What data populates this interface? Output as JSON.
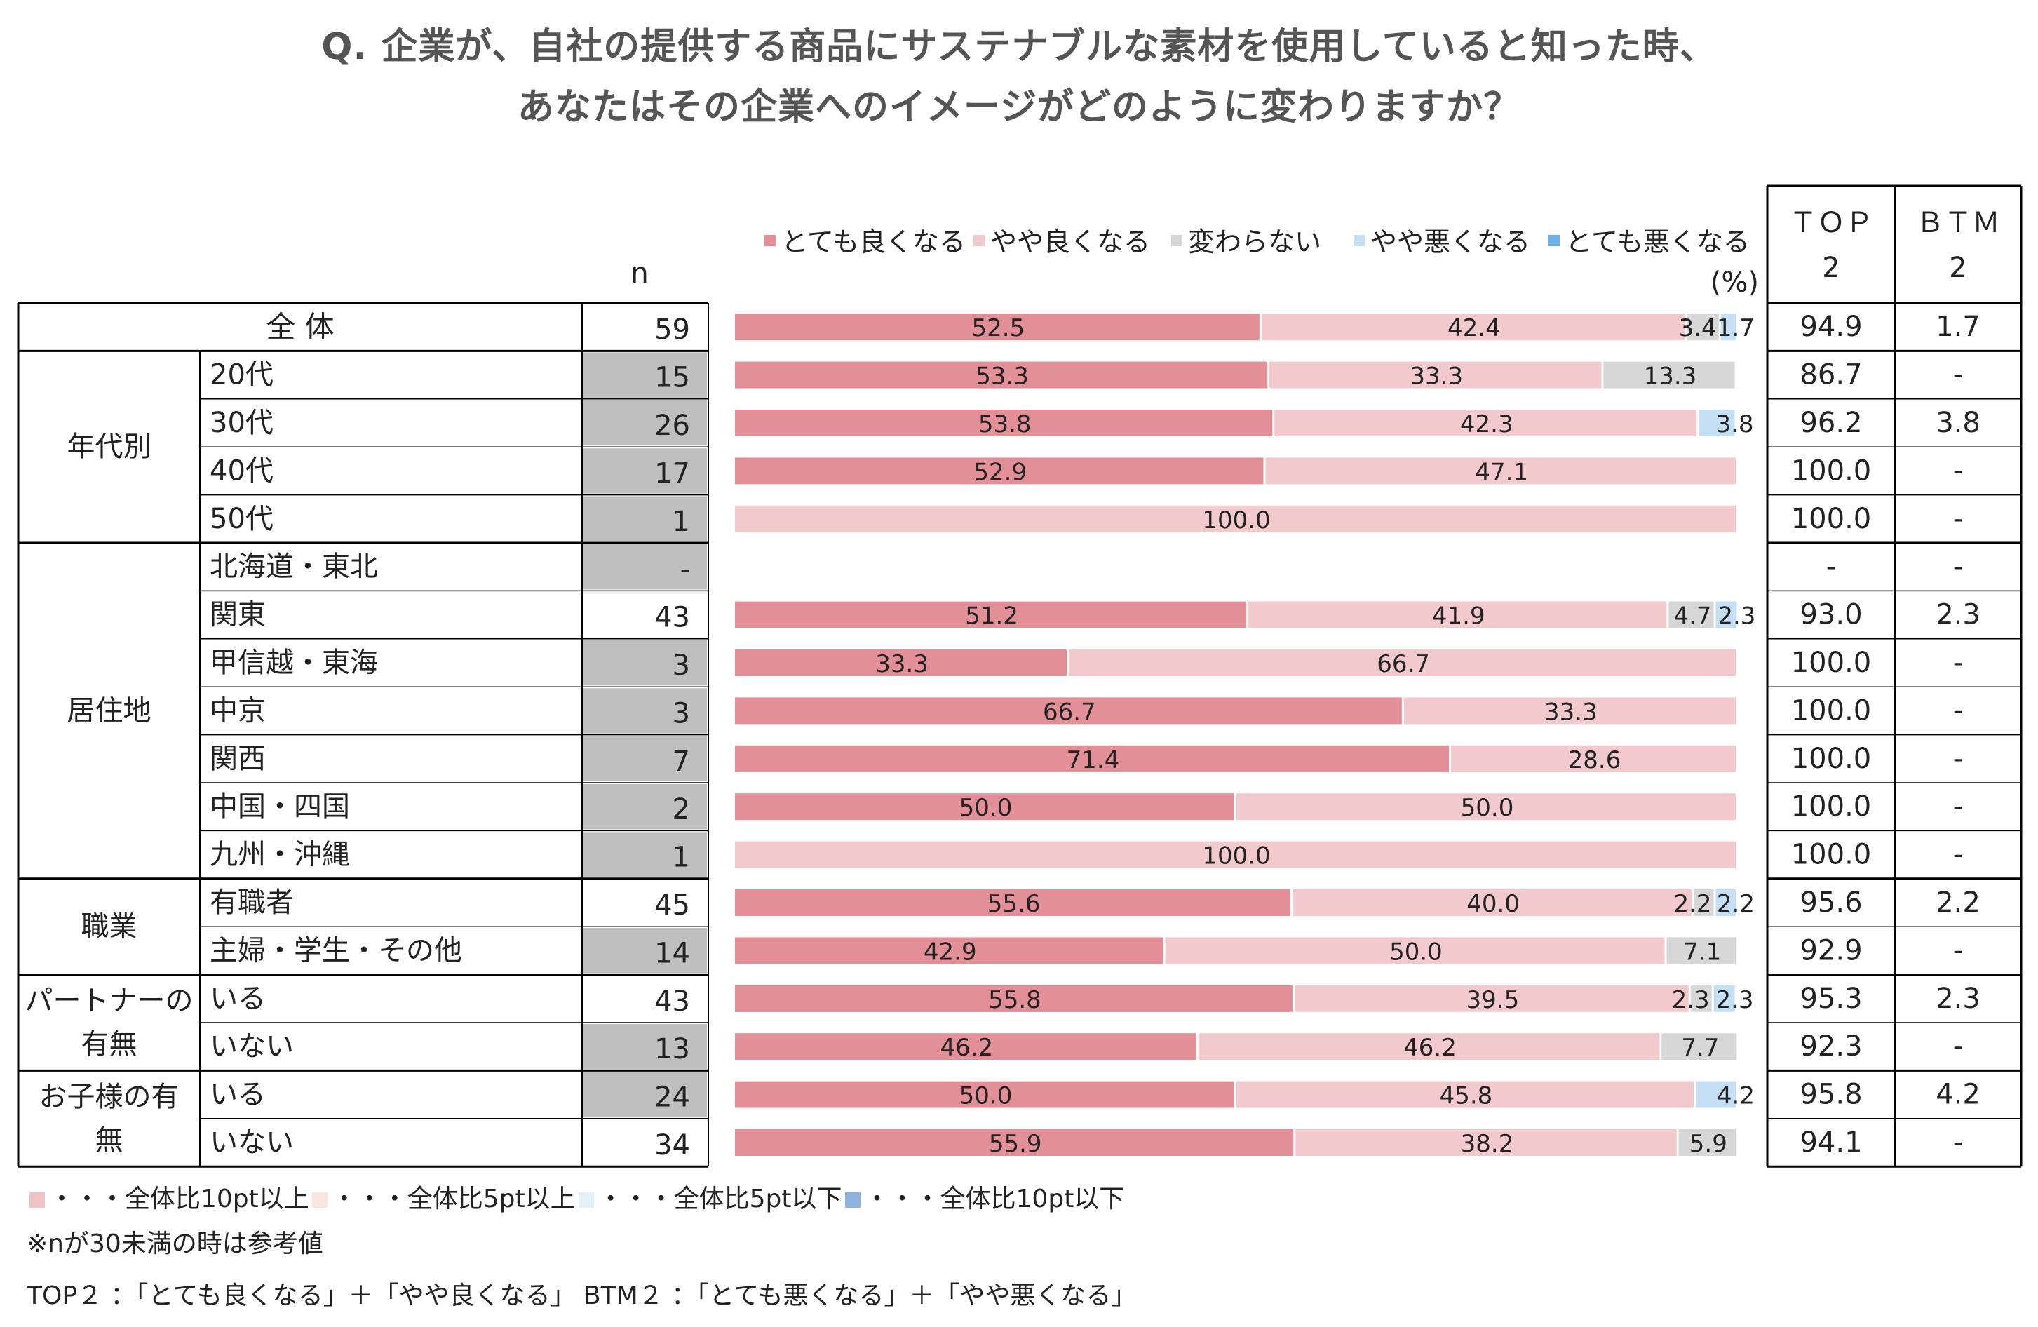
{
  "title": {
    "line1": "Q. 企業が、自社の提供する商品にサステナブルな素材を使用していると知った時、",
    "line2": "あなたはその企業へのイメージがどのように変わりますか？"
  },
  "chart_data": {
    "type": "bar",
    "stacked": true,
    "orientation": "horizontal",
    "unit_label": "(%)",
    "n_header": "n",
    "top2_header": [
      "ＴＯＰ",
      "2"
    ],
    "btm2_header": [
      "ＢＴＭ",
      "2"
    ],
    "legend": [
      {
        "label": "とても良くなる",
        "color": "#e38f98"
      },
      {
        "label": "やや良くなる",
        "color": "#f2c9cd"
      },
      {
        "label": "変わらない",
        "color": "#d7d7d7"
      },
      {
        "label": "やや悪くなる",
        "color": "#c5e0f5"
      },
      {
        "label": "とても悪くなる",
        "color": "#6fb0e8"
      }
    ],
    "groups": [
      {
        "name": [
          "全 体"
        ],
        "rows": [
          {
            "label": "",
            "n": "59",
            "shade": false,
            "values": [
              52.5,
              42.4,
              3.4,
              1.7,
              0
            ],
            "labels": [
              "52.5",
              "42.4",
              "3.4",
              "1.7",
              ""
            ],
            "top2": "94.9",
            "btm2": "1.7"
          }
        ]
      },
      {
        "name": [
          "年代別"
        ],
        "rows": [
          {
            "label": "20代",
            "n": "15",
            "shade": true,
            "values": [
              53.3,
              33.3,
              13.3,
              0,
              0
            ],
            "labels": [
              "53.3",
              "33.3",
              "13.3",
              "",
              ""
            ],
            "top2": "86.7",
            "btm2": "-"
          },
          {
            "label": "30代",
            "n": "26",
            "shade": true,
            "values": [
              53.8,
              42.3,
              0,
              3.8,
              0
            ],
            "labels": [
              "53.8",
              "42.3",
              "",
              "3.8",
              ""
            ],
            "top2": "96.2",
            "btm2": "3.8"
          },
          {
            "label": "40代",
            "n": "17",
            "shade": true,
            "values": [
              52.9,
              47.1,
              0,
              0,
              0
            ],
            "labels": [
              "52.9",
              "47.1",
              "",
              "",
              ""
            ],
            "top2": "100.0",
            "btm2": "-"
          },
          {
            "label": "50代",
            "n": "1",
            "shade": true,
            "values": [
              0,
              100,
              0,
              0,
              0
            ],
            "labels": [
              "",
              "100.0",
              "",
              "",
              ""
            ],
            "top2": "100.0",
            "btm2": "-"
          }
        ]
      },
      {
        "name": [
          "居住地"
        ],
        "rows": [
          {
            "label": "北海道・東北",
            "n": "-",
            "shade": true,
            "values": [
              0,
              0,
              0,
              0,
              0
            ],
            "labels": [
              "",
              "",
              "",
              "",
              ""
            ],
            "top2": "-",
            "btm2": "-"
          },
          {
            "label": "関東",
            "n": "43",
            "shade": false,
            "values": [
              51.2,
              41.9,
              4.7,
              2.3,
              0
            ],
            "labels": [
              "51.2",
              "41.9",
              "4.7",
              "2.3",
              ""
            ],
            "top2": "93.0",
            "btm2": "2.3"
          },
          {
            "label": "甲信越・東海",
            "n": "3",
            "shade": true,
            "values": [
              33.3,
              66.7,
              0,
              0,
              0
            ],
            "labels": [
              "33.3",
              "66.7",
              "",
              "",
              ""
            ],
            "top2": "100.0",
            "btm2": "-"
          },
          {
            "label": "中京",
            "n": "3",
            "shade": true,
            "values": [
              66.7,
              33.3,
              0,
              0,
              0
            ],
            "labels": [
              "66.7",
              "33.3",
              "",
              "",
              ""
            ],
            "top2": "100.0",
            "btm2": "-"
          },
          {
            "label": "関西",
            "n": "7",
            "shade": true,
            "values": [
              71.4,
              28.6,
              0,
              0,
              0
            ],
            "labels": [
              "71.4",
              "28.6",
              "",
              "",
              ""
            ],
            "top2": "100.0",
            "btm2": "-"
          },
          {
            "label": "中国・四国",
            "n": "2",
            "shade": true,
            "values": [
              50.0,
              50.0,
              0,
              0,
              0
            ],
            "labels": [
              "50.0",
              "50.0",
              "",
              "",
              ""
            ],
            "top2": "100.0",
            "btm2": "-"
          },
          {
            "label": "九州・沖縄",
            "n": "1",
            "shade": true,
            "values": [
              0,
              100,
              0,
              0,
              0
            ],
            "labels": [
              "",
              "100.0",
              "",
              "",
              ""
            ],
            "top2": "100.0",
            "btm2": "-"
          }
        ]
      },
      {
        "name": [
          "職業"
        ],
        "rows": [
          {
            "label": "有職者",
            "n": "45",
            "shade": false,
            "values": [
              55.6,
              40.0,
              2.2,
              2.2,
              0
            ],
            "labels": [
              "55.6",
              "40.0",
              "2.2",
              "2.2",
              ""
            ],
            "top2": "95.6",
            "btm2": "2.2"
          },
          {
            "label": "主婦・学生・その他",
            "n": "14",
            "shade": true,
            "values": [
              42.9,
              50.0,
              7.1,
              0,
              0
            ],
            "labels": [
              "42.9",
              "50.0",
              "7.1",
              "",
              ""
            ],
            "top2": "92.9",
            "btm2": "-"
          }
        ]
      },
      {
        "name": [
          "パートナーの",
          "有無"
        ],
        "rows": [
          {
            "label": "いる",
            "n": "43",
            "shade": false,
            "values": [
              55.8,
              39.5,
              2.3,
              2.3,
              0
            ],
            "labels": [
              "55.8",
              "39.5",
              "2.3",
              "2.3",
              ""
            ],
            "top2": "95.3",
            "btm2": "2.3"
          },
          {
            "label": "いない",
            "n": "13",
            "shade": true,
            "values": [
              46.2,
              46.2,
              7.7,
              0,
              0
            ],
            "labels": [
              "46.2",
              "46.2",
              "7.7",
              "",
              ""
            ],
            "top2": "92.3",
            "btm2": "-"
          }
        ]
      },
      {
        "name": [
          "お子様の有",
          "無"
        ],
        "rows": [
          {
            "label": "いる",
            "n": "24",
            "shade": true,
            "values": [
              50.0,
              45.8,
              0,
              4.2,
              0
            ],
            "labels": [
              "50.0",
              "45.8",
              "",
              "4.2",
              ""
            ],
            "top2": "95.8",
            "btm2": "4.2"
          },
          {
            "label": "いない",
            "n": "34",
            "shade": false,
            "values": [
              55.9,
              38.2,
              5.9,
              0,
              0
            ],
            "labels": [
              "55.9",
              "38.2",
              "5.9",
              "",
              ""
            ],
            "top2": "94.1",
            "btm2": "-"
          }
        ]
      }
    ]
  },
  "footer": {
    "key": [
      {
        "label": "・・・全体比10pt以上",
        "color": "#f0c4c6"
      },
      {
        "label": "・・・全体比5pt以上",
        "color": "#fbe4dc"
      },
      {
        "label": "・・・全体比5pt以下",
        "color": "#e2f0f7"
      },
      {
        "label": "・・・全体比10pt以下",
        "color": "#8fb3e0"
      }
    ],
    "note": "※nが30未満の時は参考値",
    "definition": "TOP２ ：「とても良くなる」＋「やや良くなる」 BTM２ ：「とても悪くなる」＋「やや悪くなる」"
  }
}
